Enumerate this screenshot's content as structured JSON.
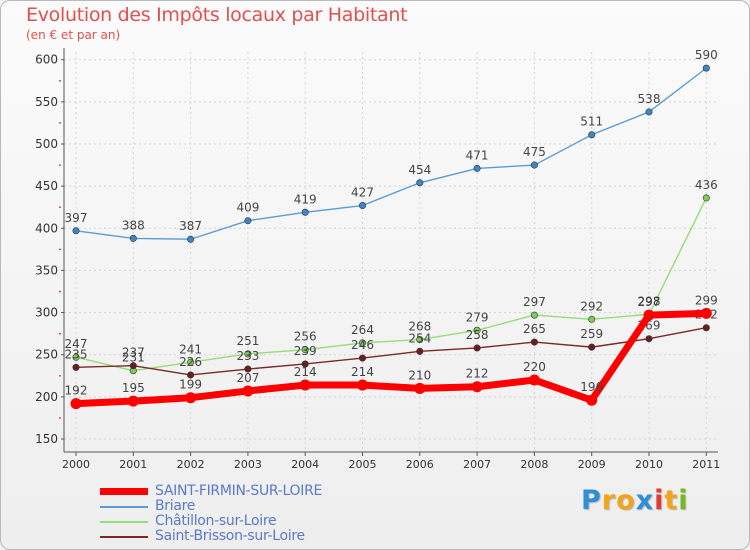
{
  "chart_data": {
    "type": "line",
    "title": "Evolution des Impôts locaux par Habitant",
    "subtitle": "(en € et par an)",
    "x": [
      "2000",
      "2001",
      "2002",
      "2003",
      "2004",
      "2005",
      "2006",
      "2007",
      "2008",
      "2009",
      "2010",
      "2011"
    ],
    "ylim": [
      150,
      600
    ],
    "yticks": [
      150,
      200,
      250,
      300,
      350,
      400,
      450,
      500,
      550,
      600
    ],
    "series": [
      {
        "name": "Briare",
        "color": "#5b9bd5",
        "marker": "#3f86c7",
        "values": [
          397,
          388,
          387,
          409,
          419,
          427,
          454,
          471,
          475,
          511,
          538,
          590
        ],
        "labels": [
          "397",
          "388",
          "387",
          "409",
          "419",
          "427",
          "454",
          "471",
          "475",
          "511",
          "538",
          "590"
        ]
      },
      {
        "name": "Châtillon-sur-Loire",
        "color": "#96dc78",
        "marker": "#7ccd55",
        "values": [
          247,
          231,
          241,
          251,
          256,
          264,
          268,
          279,
          297,
          292,
          298,
          436
        ],
        "labels": [
          "247",
          "231",
          "241",
          "251",
          "256",
          "264",
          "268",
          "279",
          "297",
          "292",
          "298",
          "436"
        ]
      },
      {
        "name": "Saint-Brisson-sur-Loire",
        "color": "#7a2a2a",
        "marker": "#6a1e1e",
        "values": [
          235,
          237,
          226,
          233,
          239,
          246,
          254,
          258,
          265,
          259,
          269,
          282
        ],
        "labels": [
          "235",
          "237",
          "226",
          "233",
          "239",
          "246",
          "254",
          "258",
          "265",
          "259",
          "269",
          "282"
        ]
      },
      {
        "name": "SAINT-FIRMIN-SUR-LOIRE",
        "color": "#ff0000",
        "marker": "#ff0000",
        "values": [
          192,
          195,
          199,
          207,
          214,
          214,
          210,
          212,
          220,
          196,
          297,
          299
        ],
        "labels": [
          "192",
          "195",
          "199",
          "207",
          "214",
          "214",
          "210",
          "212",
          "220",
          "196",
          "297",
          "299"
        ]
      }
    ]
  },
  "legend": [
    {
      "label": "SAINT-FIRMIN-SUR-LOIRE",
      "color": "#ff0000"
    },
    {
      "label": "Briare",
      "color": "#5b9bd5"
    },
    {
      "label": "Châtillon-sur-Loire",
      "color": "#96dc78"
    },
    {
      "label": "Saint-Brisson-sur-Loire",
      "color": "#7a2a2a"
    }
  ],
  "brand": {
    "letters": [
      "P",
      "r",
      "o",
      "x",
      "i",
      "t",
      "i"
    ],
    "colors": [
      "#2d8fd8",
      "#f2a51a",
      "#f2a51a",
      "#2d8fd8",
      "#e53935",
      "#f2a51a",
      "#77b81e"
    ]
  }
}
